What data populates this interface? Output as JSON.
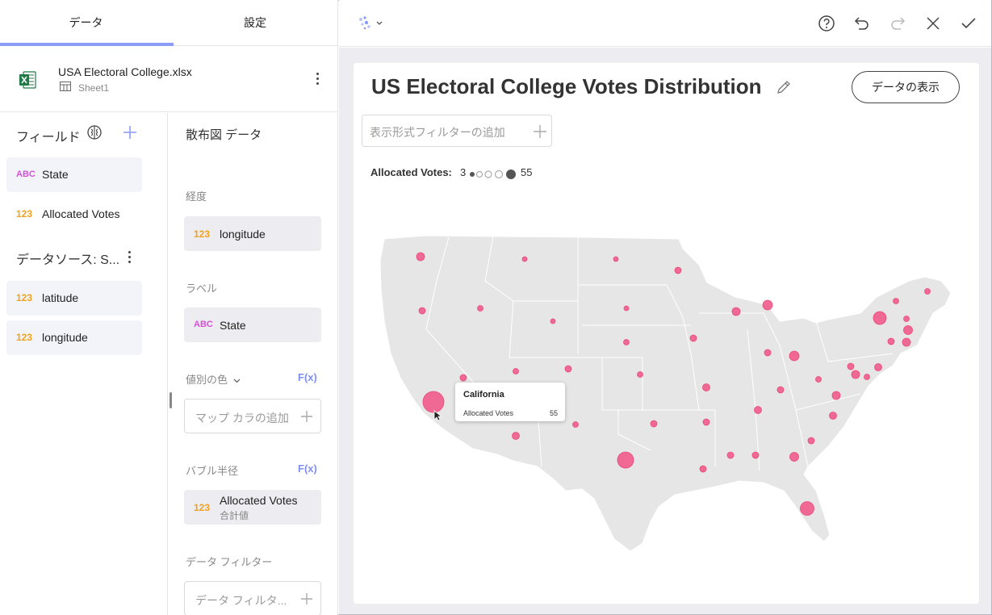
{
  "tabs": [
    {
      "label": "データ"
    },
    {
      "label": "設定"
    }
  ],
  "source": {
    "file_name": "USA Electoral College.xlsx",
    "sheet_name": "Sheet1"
  },
  "fields_panel": {
    "title": "フィールド",
    "fields": [
      {
        "type": "ABC",
        "name": "State"
      },
      {
        "type": "123",
        "name": "Allocated Votes"
      }
    ],
    "datasource_title": "データソース: S...",
    "datasource_fields": [
      {
        "type": "123",
        "name": "latitude"
      },
      {
        "type": "123",
        "name": "longitude"
      }
    ]
  },
  "settings_panel": {
    "title": "散布図 データ",
    "longitude": {
      "label": "経度",
      "field_type": "123",
      "field": "longitude"
    },
    "label": {
      "label": "ラベル",
      "field_type": "ABC",
      "field": "State"
    },
    "color": {
      "label": "値別の色",
      "fx": "F(x)",
      "placeholder": "マップ カラの追加"
    },
    "radius": {
      "label": "バブル半径",
      "fx": "F(x)",
      "field_type": "123",
      "field": "Allocated Votes",
      "aggregation": "合計値"
    },
    "data_filter": {
      "label": "データ フィルター",
      "placeholder": "データ フィルタ..."
    }
  },
  "visualization": {
    "title": "US Electoral College Votes Distribution",
    "show_data_label": "データの表示",
    "filter_placeholder": "表示形式フィルターの追加",
    "legend": {
      "label": "Allocated Votes:",
      "min": "3",
      "max": "55"
    },
    "bubble_color": "#ef5b8b",
    "tooltip": {
      "title": "California",
      "field": "Allocated Votes",
      "value": "55"
    }
  }
}
